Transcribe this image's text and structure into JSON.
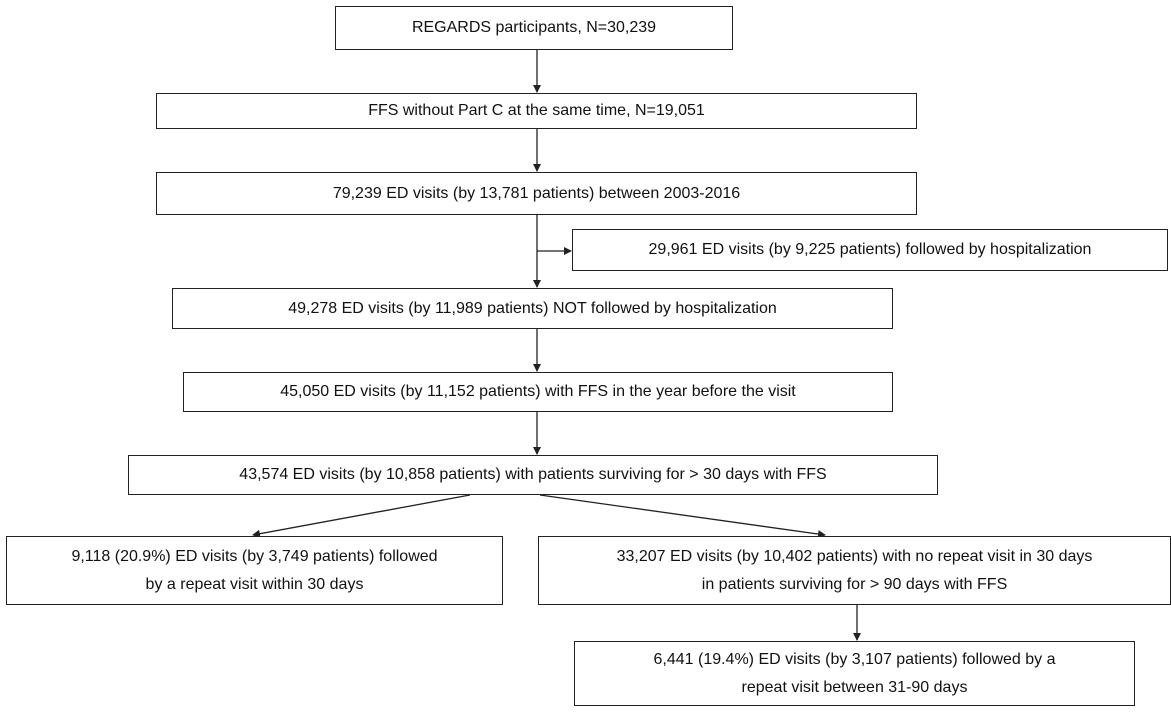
{
  "nodes": [
    {
      "lines": [
        "REGARDS participants, N=30,239"
      ]
    },
    {
      "lines": [
        "FFS without Part C at the same time, N=19,051"
      ]
    },
    {
      "lines": [
        "79,239 ED visits (by 13,781 patients) between 2003-2016"
      ]
    },
    {
      "lines": [
        "29,961 ED visits (by 9,225 patients) followed by hospitalization"
      ]
    },
    {
      "lines": [
        "49,278 ED visits (by 11,989 patients) NOT followed by hospitalization"
      ]
    },
    {
      "lines": [
        "45,050 ED visits (by 11,152 patients) with FFS in the year before the visit"
      ]
    },
    {
      "lines": [
        "43,574 ED visits (by 10,858 patients) with patients surviving for  > 30 days with FFS"
      ]
    },
    {
      "lines": [
        "9,118 (20.9%) ED visits (by 3,749 patients) followed",
        "by a repeat visit within 30 days"
      ]
    },
    {
      "lines": [
        "33,207 ED visits (by 10,402 patients) with no repeat visit in 30 days",
        "in patients surviving for  > 90 days with FFS"
      ]
    },
    {
      "lines": [
        "6,441 (19.4%) ED visits (by 3,107 patients) followed by a",
        "repeat visit between 31-90 days"
      ]
    }
  ]
}
